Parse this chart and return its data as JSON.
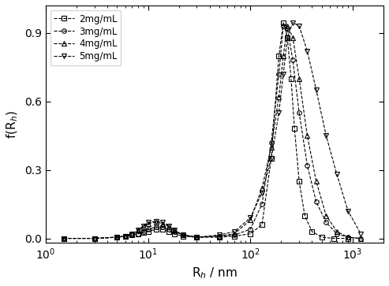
{
  "title": "",
  "xlabel": "R$_{h}$ / nm",
  "ylabel": "f(R$_{h}$)",
  "xlim": [
    1,
    2000
  ],
  "ylim": [
    -0.02,
    1.02
  ],
  "yticks": [
    0.0,
    0.3,
    0.6,
    0.9
  ],
  "series": [
    {
      "label": "2mg/mL",
      "marker": "s",
      "x": [
        1.5,
        3,
        5,
        6,
        7,
        8,
        9,
        10,
        12,
        14,
        16,
        18,
        22,
        30,
        50,
        70,
        100,
        130,
        160,
        190,
        210,
        230,
        250,
        270,
        300,
        340,
        400,
        500,
        650,
        900
      ],
      "y": [
        0.0,
        0.0,
        0.005,
        0.01,
        0.015,
        0.02,
        0.025,
        0.03,
        0.04,
        0.04,
        0.03,
        0.02,
        0.01,
        0.005,
        0.005,
        0.01,
        0.02,
        0.06,
        0.35,
        0.8,
        0.945,
        0.88,
        0.7,
        0.48,
        0.25,
        0.1,
        0.03,
        0.005,
        0.0,
        0.0
      ]
    },
    {
      "label": "3mg/mL",
      "marker": "o",
      "x": [
        1.5,
        3,
        5,
        6,
        7,
        8,
        9,
        10,
        12,
        14,
        16,
        18,
        22,
        30,
        50,
        70,
        100,
        130,
        160,
        190,
        210,
        230,
        260,
        300,
        360,
        440,
        550,
        700,
        900,
        1200
      ],
      "y": [
        0.0,
        0.0,
        0.005,
        0.01,
        0.015,
        0.02,
        0.03,
        0.04,
        0.05,
        0.05,
        0.04,
        0.03,
        0.015,
        0.005,
        0.01,
        0.015,
        0.04,
        0.15,
        0.42,
        0.72,
        0.93,
        0.92,
        0.78,
        0.55,
        0.32,
        0.16,
        0.07,
        0.02,
        0.005,
        0.0
      ]
    },
    {
      "label": "4mg/mL",
      "marker": "^",
      "x": [
        1.5,
        3,
        5,
        6,
        7,
        8,
        9,
        10,
        12,
        14,
        16,
        18,
        22,
        30,
        50,
        70,
        100,
        130,
        160,
        190,
        210,
        230,
        260,
        300,
        360,
        440,
        550,
        700,
        900,
        1200
      ],
      "y": [
        0.0,
        0.0,
        0.005,
        0.01,
        0.02,
        0.035,
        0.05,
        0.065,
        0.07,
        0.065,
        0.05,
        0.035,
        0.015,
        0.005,
        0.01,
        0.02,
        0.08,
        0.22,
        0.4,
        0.62,
        0.8,
        0.93,
        0.88,
        0.7,
        0.45,
        0.25,
        0.1,
        0.03,
        0.005,
        0.0
      ]
    },
    {
      "label": "5mg/mL",
      "marker": "v",
      "x": [
        1.5,
        3,
        5,
        6,
        7,
        8,
        9,
        10,
        12,
        14,
        16,
        18,
        22,
        30,
        50,
        70,
        100,
        130,
        160,
        190,
        210,
        230,
        260,
        300,
        360,
        440,
        550,
        700,
        900,
        1200
      ],
      "y": [
        0.0,
        0.0,
        0.005,
        0.01,
        0.02,
        0.035,
        0.055,
        0.07,
        0.075,
        0.07,
        0.055,
        0.035,
        0.015,
        0.005,
        0.015,
        0.03,
        0.09,
        0.2,
        0.35,
        0.55,
        0.72,
        0.88,
        0.945,
        0.93,
        0.82,
        0.65,
        0.45,
        0.28,
        0.12,
        0.02
      ]
    }
  ],
  "markersize": 4,
  "linewidth": 0.8,
  "background_color": "#ffffff",
  "legend_loc": "upper left",
  "legend_fontsize": 8.5
}
